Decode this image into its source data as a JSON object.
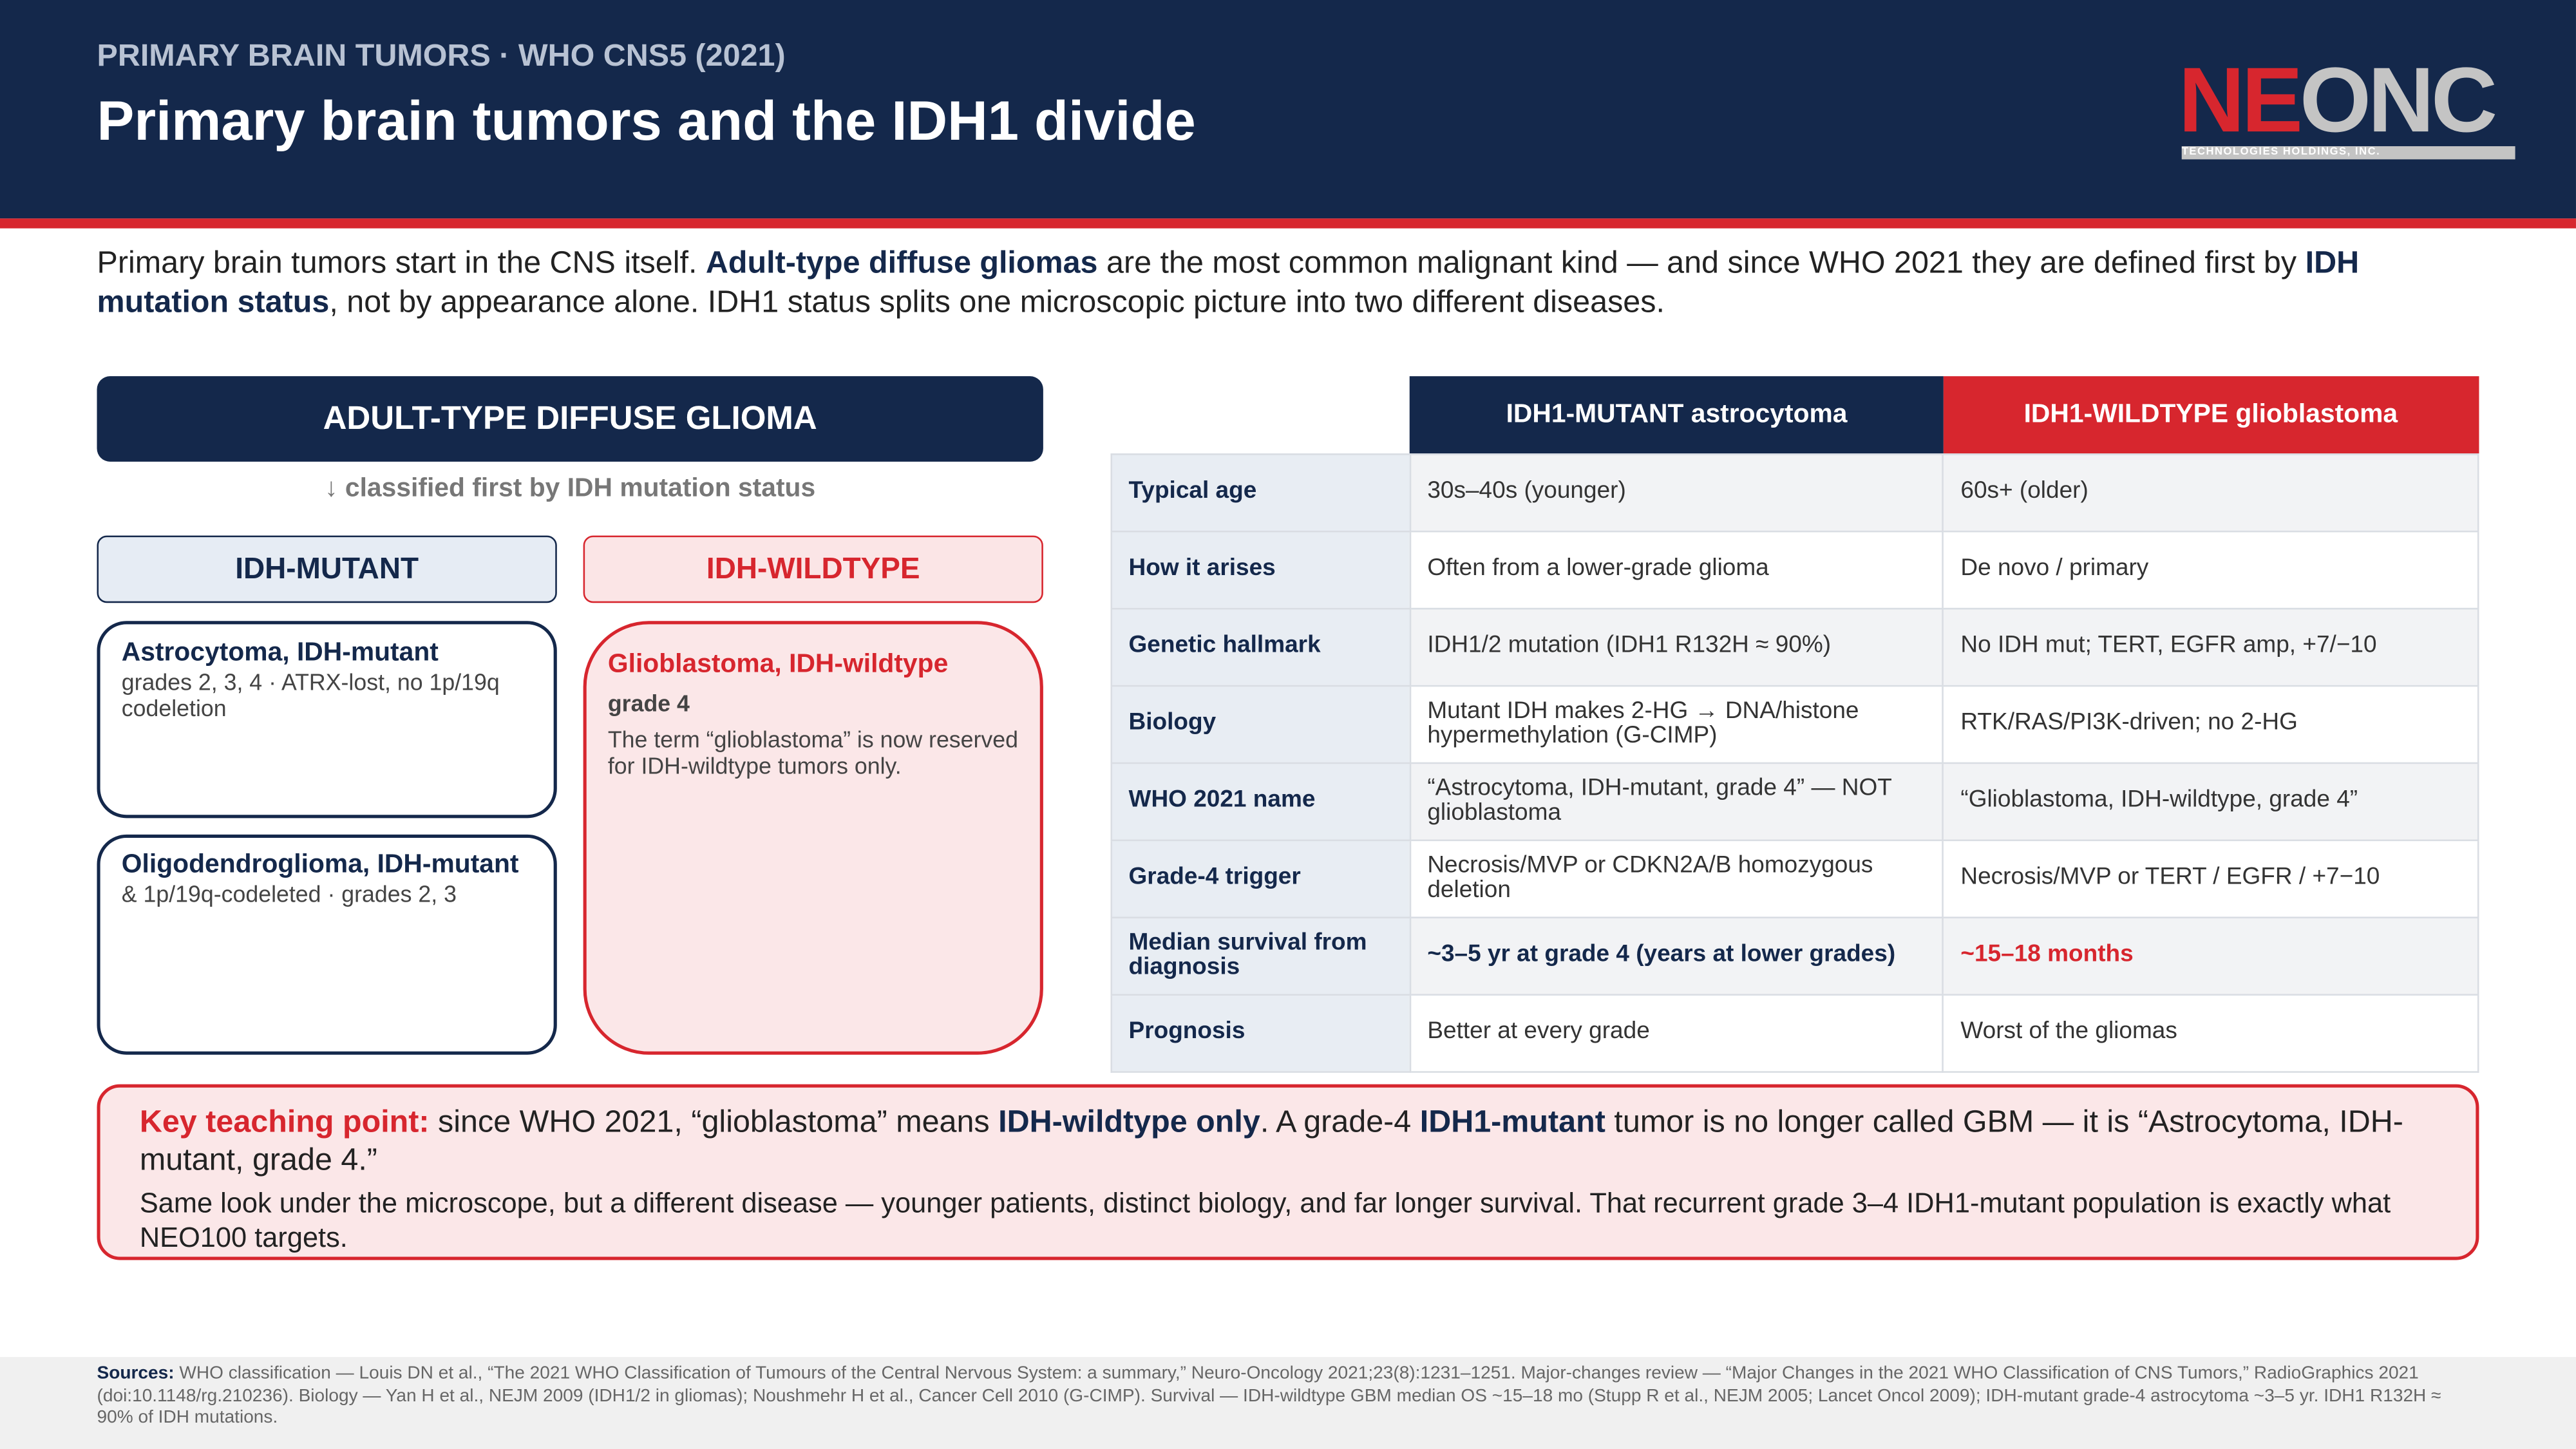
{
  "header": {
    "kicker": "PRIMARY BRAIN TUMORS · WHO CNS5 (2021)",
    "title": "Primary brain tumors and the IDH1 divide",
    "logo": {
      "red": "NE",
      "gray": "ONC",
      "tagline": "TECHNOLOGIES HOLDINGS, INC."
    }
  },
  "intro": {
    "parts": [
      "Primary brain tumors start in the CNS itself. ",
      "Adult-type diffuse gliomas",
      " are the most common malignant kind — and since WHO 2021 they are defined first by ",
      "IDH mutation status",
      ", not by appearance alone. IDH1 status splits one microscopic picture into two different diseases."
    ]
  },
  "diagram": {
    "title": "ADULT-TYPE DIFFUSE GLIOMA",
    "note": "↓ classified first by IDH mutation status",
    "mutant": {
      "label": "IDH-MUTANT",
      "cards": [
        {
          "name": "Astrocytoma, IDH-mutant",
          "detail": "grades 2, 3, 4 · ATRX-lost, no 1p/19q codeletion"
        },
        {
          "name": "Oligodendroglioma, IDH-mutant",
          "detail": "& 1p/19q-codeleted · grades 2, 3"
        }
      ]
    },
    "wildtype": {
      "label": "IDH-WILDTYPE",
      "card": {
        "name": "Glioblastoma, IDH-wildtype",
        "grade": "grade 4",
        "detail": "The term “glioblastoma” is now reserved for IDH-wildtype tumors only."
      }
    }
  },
  "table": {
    "columns": [
      "IDH1-MUTANT astrocytoma",
      "IDH1-WILDTYPE glioblastoma"
    ],
    "rows": [
      [
        "Typical age",
        "30s–40s (younger)",
        "60s+ (older)"
      ],
      [
        "How it arises",
        "Often from a lower-grade glioma",
        "De novo / primary"
      ],
      [
        "Genetic hallmark",
        "IDH1/2 mutation (IDH1 R132H ≈ 90%)",
        "No IDH mut; TERT, EGFR amp, +7/−10"
      ],
      [
        "Biology",
        "Mutant IDH makes 2-HG → DNA/histone hypermethylation (G-CIMP)",
        "RTK/RAS/PI3K-driven; no 2-HG"
      ],
      [
        "WHO 2021 name",
        "“Astrocytoma, IDH-mutant, grade 4” — NOT glioblastoma",
        "“Glioblastoma, IDH-wildtype, grade 4”"
      ],
      [
        "Grade-4 trigger",
        "Necrosis/MVP or CDKN2A/B homozygous deletion",
        "Necrosis/MVP or TERT / EGFR / +7−10"
      ],
      [
        "Median survival from diagnosis",
        "~3–5 yr at grade 4 (years at lower grades)",
        "~15–18 months"
      ],
      [
        "Prognosis",
        "Better at every grade",
        "Worst of the gliomas"
      ]
    ]
  },
  "key_point": {
    "parts": [
      "Key teaching point:",
      " since WHO 2021, “glioblastoma” means ",
      "IDH-wildtype only",
      ". A grade-4 ",
      "IDH1-mutant",
      " tumor is no longer called GBM — it is “Astrocytoma, IDH-mutant, grade 4.”"
    ],
    "body": "Same look under the microscope, but a different disease — younger patients, distinct biology, and far longer survival. That recurrent grade 3–4 IDH1-mutant population is exactly what NEO100 targets."
  },
  "sources": {
    "label": "Sources:",
    "text": " WHO classification — Louis DN et al., “The 2021 WHO Classification of Tumours of the Central Nervous System: a summary,” Neuro-Oncology 2021;23(8):1231–1251. Major-changes review — “Major Changes in the 2021 WHO Classification of CNS Tumors,” RadioGraphics 2021 (doi:10.1148/rg.210236). Biology — Yan H et al., NEJM 2009 (IDH1/2 in gliomas); Noushmehr H et al., Cancer Cell 2010 (G-CIMP). Survival — IDH-wildtype GBM median OS ~15–18 mo (Stupp R et al., NEJM 2005; Lancet Oncol 2009); IDH-mutant grade-4 astrocytoma ~3–5 yr. IDH1 R132H ≈ 90% of IDH mutations."
  }
}
